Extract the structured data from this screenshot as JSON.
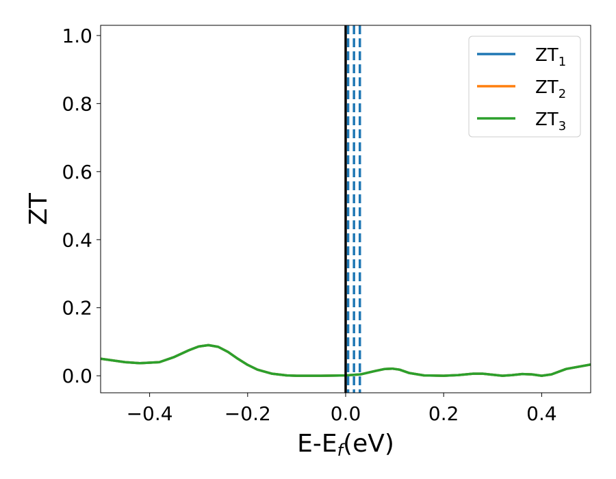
{
  "chart_data": {
    "type": "line",
    "xlabel": "E-E",
    "xlabel_sub": "f",
    "xlabel_unit": "(eV)",
    "ylabel": "ZT",
    "xlim": [
      -0.5,
      0.5
    ],
    "ylim": [
      -0.05,
      1.03
    ],
    "xticks": [
      -0.4,
      -0.2,
      0.0,
      0.2,
      0.4
    ],
    "xtick_labels": [
      "−0.4",
      "−0.2",
      "0.0",
      "0.2",
      "0.4"
    ],
    "yticks": [
      0.0,
      0.2,
      0.4,
      0.6,
      0.8,
      1.0
    ],
    "ytick_labels": [
      "0.0",
      "0.2",
      "0.4",
      "0.6",
      "0.8",
      "1.0"
    ],
    "grid": false,
    "legend_position": "top-right",
    "fermi_line": {
      "x": 0.0,
      "color": "#000000"
    },
    "dashed_lines": {
      "x": [
        0.005,
        0.017,
        0.029
      ],
      "color": "#1f77b4"
    },
    "legend": [
      {
        "base": "ZT",
        "sub": "1",
        "color": "#1f77b4"
      },
      {
        "base": "ZT",
        "sub": "2",
        "color": "#ff7f0e"
      },
      {
        "base": "ZT",
        "sub": "3",
        "color": "#2ca02c"
      }
    ],
    "series": [
      {
        "color": "#1f77b4",
        "x": [
          -0.5,
          -0.45,
          -0.42,
          -0.38,
          -0.35,
          -0.32,
          -0.3,
          -0.28,
          -0.26,
          -0.24,
          -0.22,
          -0.2,
          -0.18,
          -0.15,
          -0.12,
          -0.1,
          -0.05,
          0.0,
          0.03,
          0.06,
          0.08,
          0.095,
          0.11,
          0.13,
          0.16,
          0.2,
          0.23,
          0.26,
          0.28,
          0.3,
          0.32,
          0.34,
          0.36,
          0.38,
          0.4,
          0.42,
          0.45,
          0.5
        ],
        "y": [
          0.05,
          0.04,
          0.037,
          0.04,
          0.055,
          0.075,
          0.086,
          0.09,
          0.085,
          0.07,
          0.05,
          0.032,
          0.018,
          0.006,
          0.001,
          0.0,
          0.0,
          0.001,
          0.004,
          0.014,
          0.02,
          0.021,
          0.018,
          0.008,
          0.001,
          0.0,
          0.002,
          0.006,
          0.006,
          0.003,
          0.0,
          0.002,
          0.005,
          0.004,
          0.0,
          0.004,
          0.02,
          0.033
        ]
      },
      {
        "color": "#ff7f0e",
        "x": [
          -0.5,
          -0.45,
          -0.42,
          -0.38,
          -0.35,
          -0.32,
          -0.3,
          -0.28,
          -0.26,
          -0.24,
          -0.22,
          -0.2,
          -0.18,
          -0.15,
          -0.12,
          -0.1,
          -0.05,
          0.0,
          0.03,
          0.06,
          0.08,
          0.095,
          0.11,
          0.13,
          0.16,
          0.2,
          0.23,
          0.26,
          0.28,
          0.3,
          0.32,
          0.34,
          0.36,
          0.38,
          0.4,
          0.42,
          0.45,
          0.5
        ],
        "y": [
          0.05,
          0.04,
          0.037,
          0.04,
          0.055,
          0.075,
          0.086,
          0.09,
          0.085,
          0.07,
          0.05,
          0.032,
          0.018,
          0.006,
          0.001,
          0.0,
          0.0,
          0.001,
          0.004,
          0.014,
          0.02,
          0.021,
          0.018,
          0.008,
          0.001,
          0.0,
          0.002,
          0.006,
          0.006,
          0.003,
          0.0,
          0.002,
          0.005,
          0.004,
          0.0,
          0.004,
          0.02,
          0.033
        ]
      },
      {
        "color": "#2ca02c",
        "x": [
          -0.5,
          -0.45,
          -0.42,
          -0.38,
          -0.35,
          -0.32,
          -0.3,
          -0.28,
          -0.26,
          -0.24,
          -0.22,
          -0.2,
          -0.18,
          -0.15,
          -0.12,
          -0.1,
          -0.05,
          0.0,
          0.03,
          0.06,
          0.08,
          0.095,
          0.11,
          0.13,
          0.16,
          0.2,
          0.23,
          0.26,
          0.28,
          0.3,
          0.32,
          0.34,
          0.36,
          0.38,
          0.4,
          0.42,
          0.45,
          0.5
        ],
        "y": [
          0.05,
          0.04,
          0.037,
          0.04,
          0.055,
          0.075,
          0.086,
          0.09,
          0.085,
          0.07,
          0.05,
          0.032,
          0.018,
          0.006,
          0.001,
          0.0,
          0.0,
          0.001,
          0.004,
          0.014,
          0.02,
          0.021,
          0.018,
          0.008,
          0.001,
          0.0,
          0.002,
          0.006,
          0.006,
          0.003,
          0.0,
          0.002,
          0.005,
          0.004,
          0.0,
          0.004,
          0.02,
          0.033
        ]
      }
    ]
  }
}
